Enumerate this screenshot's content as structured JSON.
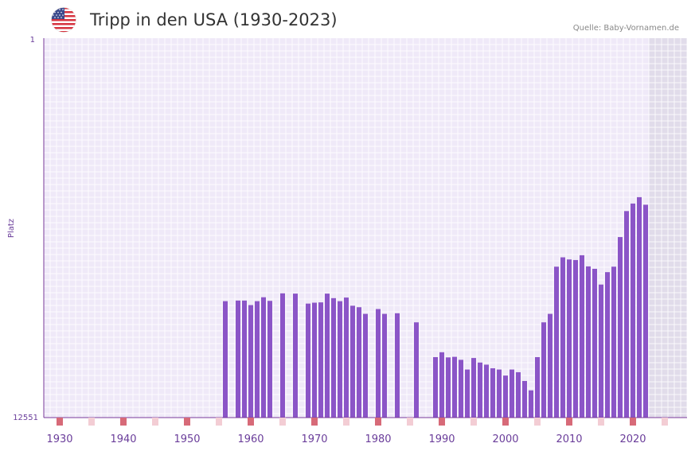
{
  "header": {
    "title": "Tripp in den USA (1930-2023)",
    "source": "Quelle: Baby-Vornamen.de"
  },
  "colors": {
    "bar": "#8b55c7",
    "plot_bg": "#efe9f8",
    "grid": "#ffffff",
    "future_bg": "#e1dcea",
    "axis": "#7a3a9a",
    "decade_marker": "#d76a78",
    "mid_marker": "#f3cdd4",
    "tick_label": "#6a3d9a"
  },
  "chart_data": {
    "type": "bar",
    "title": "Tripp in den USA (1930-2023)",
    "xlabel": "",
    "ylabel": "Platz",
    "y_axis_inverted": true,
    "ylim": [
      1,
      12551
    ],
    "y_tick_labels": [
      "1",
      "12551"
    ],
    "xlim": [
      1928,
      2029
    ],
    "x_tick_labels": [
      "1930",
      "1940",
      "1950",
      "1960",
      "1970",
      "1980",
      "1990",
      "2000",
      "2010",
      "2020"
    ],
    "future_shading_from_year": 2023,
    "years": [
      1956,
      1958,
      1959,
      1960,
      1961,
      1962,
      1963,
      1965,
      1967,
      1969,
      1970,
      1971,
      1972,
      1973,
      1974,
      1975,
      1976,
      1977,
      1978,
      1980,
      1981,
      1983,
      1986,
      1989,
      1990,
      1991,
      1992,
      1993,
      1994,
      1995,
      1996,
      1997,
      1998,
      1999,
      2000,
      2001,
      2002,
      2003,
      2004,
      2005,
      2006,
      2007,
      2008,
      2009,
      2010,
      2011,
      2012,
      2013,
      2014,
      2015,
      2016,
      2017,
      2018,
      2019,
      2020,
      2021,
      2022
    ],
    "ranks": [
      8700,
      8680,
      8680,
      8830,
      8700,
      8570,
      8690,
      8440,
      8450,
      8780,
      8750,
      8740,
      8450,
      8600,
      8700,
      8580,
      8850,
      8900,
      9120,
      8960,
      9120,
      9100,
      9400,
      10550,
      10390,
      10560,
      10540,
      10640,
      10960,
      10580,
      10730,
      10800,
      10920,
      10960,
      11160,
      10960,
      11050,
      11340,
      11650,
      10550,
      9400,
      9120,
      7560,
      7250,
      7320,
      7340,
      7180,
      7550,
      7630,
      8150,
      7740,
      7560,
      6580,
      5720,
      5470,
      5260,
      5510
    ]
  }
}
